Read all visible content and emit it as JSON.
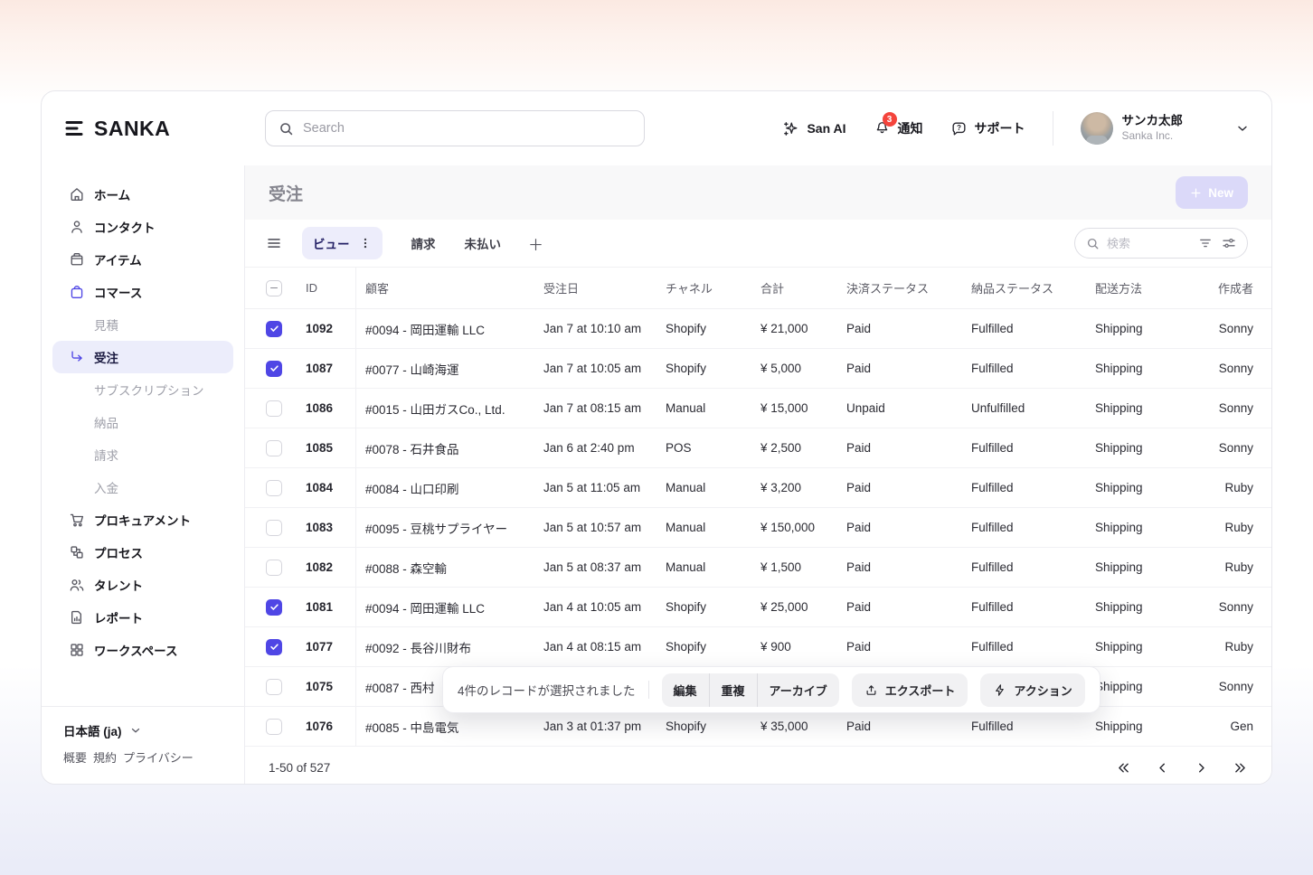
{
  "app": {
    "logo_text": "SANKA"
  },
  "header": {
    "search_placeholder": "Search",
    "san_ai_label": "San AI",
    "notifications_label": "通知",
    "notifications_badge": "3",
    "support_label": "サポート",
    "user_name": "サンカ太郎",
    "user_org": "Sanka Inc."
  },
  "sidebar": {
    "items": [
      {
        "label": "ホーム",
        "icon": "home-icon",
        "type": "main"
      },
      {
        "label": "コンタクト",
        "icon": "contact-icon",
        "type": "main"
      },
      {
        "label": "アイテム",
        "icon": "item-icon",
        "type": "main"
      },
      {
        "label": "コマース",
        "icon": "commerce-bag-icon",
        "type": "main",
        "accent": true
      },
      {
        "label": "見積",
        "type": "sub"
      },
      {
        "label": "受注",
        "icon": "corner-down-right-icon",
        "type": "sub",
        "active": true
      },
      {
        "label": "サブスクリプション",
        "type": "sub"
      },
      {
        "label": "納品",
        "type": "sub"
      },
      {
        "label": "請求",
        "type": "sub"
      },
      {
        "label": "入金",
        "type": "sub"
      },
      {
        "label": "プロキュアメント",
        "icon": "cart-icon",
        "type": "main"
      },
      {
        "label": "プロセス",
        "icon": "process-icon",
        "type": "main"
      },
      {
        "label": "タレント",
        "icon": "talent-icon",
        "type": "main"
      },
      {
        "label": "レポート",
        "icon": "report-icon",
        "type": "main"
      },
      {
        "label": "ワークスペース",
        "icon": "workspace-icon",
        "type": "main"
      }
    ],
    "footer": {
      "language": "日本語 (ja)",
      "links": [
        "概要",
        "規約",
        "プライバシー"
      ]
    }
  },
  "page": {
    "title": "受注",
    "new_button_label": "New"
  },
  "toolbar": {
    "tabs": [
      {
        "label": "ビュー",
        "active": true
      },
      {
        "label": "請求",
        "active": false
      },
      {
        "label": "未払い",
        "active": false
      }
    ],
    "search_placeholder": "検索"
  },
  "table": {
    "headers": {
      "id": "ID",
      "customer": "顧客",
      "order_date": "受注日",
      "channel": "チャネル",
      "total": "合計",
      "payment_status": "決済ステータス",
      "fulfillment_status": "納品ステータス",
      "shipping_method": "配送方法",
      "creator": "作成者"
    },
    "rows": [
      {
        "checked": true,
        "id": "1092",
        "customer": "#0094 - 岡田運輸 LLC",
        "order_date": "Jan 7 at 10:10 am",
        "channel": "Shopify",
        "total": "¥ 21,000",
        "payment": "Paid",
        "fulfillment": "Fulfilled",
        "shipping": "Shipping",
        "creator": "Sonny"
      },
      {
        "checked": true,
        "id": "1087",
        "customer": "#0077 - 山崎海運",
        "order_date": "Jan 7 at 10:05 am",
        "channel": "Shopify",
        "total": "¥ 5,000",
        "payment": "Paid",
        "fulfillment": "Fulfilled",
        "shipping": "Shipping",
        "creator": "Sonny"
      },
      {
        "checked": false,
        "id": "1086",
        "customer": "#0015 - 山田ガスCo., Ltd.",
        "order_date": "Jan 7 at 08:15 am",
        "channel": "Manual",
        "total": "¥ 15,000",
        "payment": "Unpaid",
        "fulfillment": "Unfulfilled",
        "shipping": "Shipping",
        "creator": "Sonny"
      },
      {
        "checked": false,
        "id": "1085",
        "customer": "#0078 - 石井食品",
        "order_date": "Jan 6 at 2:40 pm",
        "channel": "POS",
        "total": "¥ 2,500",
        "payment": "Paid",
        "fulfillment": "Fulfilled",
        "shipping": "Shipping",
        "creator": "Sonny"
      },
      {
        "checked": false,
        "id": "1084",
        "customer": "#0084 - 山口印刷",
        "order_date": "Jan 5 at 11:05 am",
        "channel": "Manual",
        "total": "¥ 3,200",
        "payment": "Paid",
        "fulfillment": "Fulfilled",
        "shipping": "Shipping",
        "creator": "Ruby"
      },
      {
        "checked": false,
        "id": "1083",
        "customer": "#0095 - 豆桃サプライヤー",
        "order_date": "Jan 5 at 10:57 am",
        "channel": "Manual",
        "total": "¥ 150,000",
        "payment": "Paid",
        "fulfillment": "Fulfilled",
        "shipping": "Shipping",
        "creator": "Ruby"
      },
      {
        "checked": false,
        "id": "1082",
        "customer": "#0088 - 森空輸",
        "order_date": "Jan 5 at 08:37 am",
        "channel": "Manual",
        "total": "¥ 1,500",
        "payment": "Paid",
        "fulfillment": "Fulfilled",
        "shipping": "Shipping",
        "creator": "Ruby"
      },
      {
        "checked": true,
        "id": "1081",
        "customer": "#0094 - 岡田運輸 LLC",
        "order_date": "Jan 4 at 10:05 am",
        "channel": "Shopify",
        "total": "¥ 25,000",
        "payment": "Paid",
        "fulfillment": "Fulfilled",
        "shipping": "Shipping",
        "creator": "Sonny"
      },
      {
        "checked": true,
        "id": "1077",
        "customer": "#0092 - 長谷川財布",
        "order_date": "Jan 4 at 08:15 am",
        "channel": "Shopify",
        "total": "¥ 900",
        "payment": "Paid",
        "fulfillment": "Fulfilled",
        "shipping": "Shipping",
        "creator": "Ruby"
      },
      {
        "checked": false,
        "id": "1075",
        "customer": "#0087 - 西村",
        "order_date": "",
        "channel": "",
        "total": "",
        "payment": "",
        "fulfillment": "",
        "shipping": "Shipping",
        "creator": "Sonny"
      },
      {
        "checked": false,
        "id": "1076",
        "customer": "#0085 - 中島電気",
        "order_date": "Jan 3 at 01:37 pm",
        "channel": "Shopify",
        "total": "¥ 35,000",
        "payment": "Paid",
        "fulfillment": "Fulfilled",
        "shipping": "Shipping",
        "creator": "Gen"
      }
    ]
  },
  "selection_bar": {
    "message": "4件のレコードが選択されました",
    "group_buttons": [
      "編集",
      "重複",
      "アーカイブ"
    ],
    "export_label": "エクスポート",
    "actions_label": "アクション"
  },
  "pagination": {
    "range": "1-50 of 527"
  },
  "colors": {
    "accent": "#4f46e5",
    "accent_light": "#ededfb",
    "new_button_bg": "#dbd9f9",
    "badge_red": "#f4443c"
  }
}
